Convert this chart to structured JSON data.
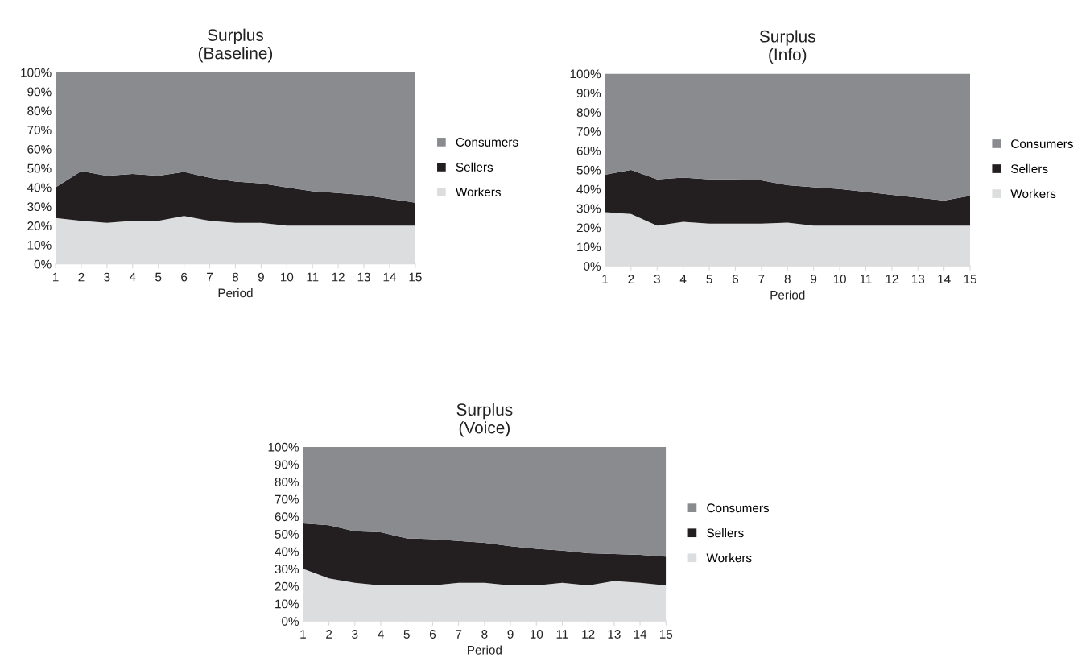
{
  "chart_data": [
    {
      "type": "area",
      "stacked": true,
      "title": "Surplus\n(Baseline)",
      "xlabel": "Period",
      "x": [
        1,
        2,
        3,
        4,
        5,
        6,
        7,
        8,
        9,
        10,
        11,
        12,
        13,
        14,
        15
      ],
      "xlim": [
        1,
        15
      ],
      "xticks": [
        1,
        2,
        3,
        4,
        5,
        6,
        7,
        8,
        9,
        10,
        11,
        12,
        13,
        14,
        15
      ],
      "ylim": [
        0,
        100
      ],
      "yticks": [
        {
          "value": 0,
          "label": "0%"
        },
        {
          "value": 10,
          "label": "10%"
        },
        {
          "value": 20,
          "label": "20%"
        },
        {
          "value": 30,
          "label": "30%"
        },
        {
          "value": 40,
          "label": "40%"
        },
        {
          "value": 50,
          "label": "50%"
        },
        {
          "value": 60,
          "label": "60%"
        },
        {
          "value": 70,
          "label": "70%"
        },
        {
          "value": 80,
          "label": "80%"
        },
        {
          "value": 90,
          "label": "90%"
        },
        {
          "value": 100,
          "label": "100%"
        }
      ],
      "grid": false,
      "legend": "right",
      "series": [
        {
          "name": "Workers",
          "color": "#dcdddf",
          "values": [
            24,
            22.5,
            21.5,
            22.5,
            22.5,
            25,
            22.5,
            21.5,
            21.5,
            20,
            20,
            20,
            20,
            20,
            20
          ]
        },
        {
          "name": "Sellers",
          "color": "#231f20",
          "values": [
            16,
            26,
            24.5,
            24.5,
            23.5,
            23,
            22.5,
            21.5,
            20.5,
            20,
            18,
            17,
            16,
            14,
            12
          ]
        },
        {
          "name": "Consumers",
          "color": "#8a8b8f",
          "values": [
            60,
            51.5,
            54,
            53,
            54,
            52,
            55,
            57,
            58,
            60,
            62,
            63,
            64,
            66,
            68
          ]
        }
      ]
    },
    {
      "type": "area",
      "stacked": true,
      "title": "Surplus\n(Info)",
      "xlabel": "Period",
      "x": [
        1,
        2,
        3,
        4,
        5,
        6,
        7,
        8,
        9,
        10,
        11,
        12,
        13,
        14,
        15
      ],
      "xlim": [
        1,
        15
      ],
      "xticks": [
        1,
        2,
        3,
        4,
        5,
        6,
        7,
        8,
        9,
        10,
        11,
        12,
        13,
        14,
        15
      ],
      "ylim": [
        0,
        100
      ],
      "yticks": [
        {
          "value": 0,
          "label": "0%"
        },
        {
          "value": 10,
          "label": "10%"
        },
        {
          "value": 20,
          "label": "20%"
        },
        {
          "value": 30,
          "label": "30%"
        },
        {
          "value": 40,
          "label": "40%"
        },
        {
          "value": 50,
          "label": "50%"
        },
        {
          "value": 60,
          "label": "60%"
        },
        {
          "value": 70,
          "label": "70%"
        },
        {
          "value": 80,
          "label": "80%"
        },
        {
          "value": 90,
          "label": "90%"
        },
        {
          "value": 100,
          "label": "100%"
        }
      ],
      "grid": false,
      "legend": "right",
      "series": [
        {
          "name": "Workers",
          "color": "#dcdddf",
          "values": [
            28,
            27,
            21,
            23,
            22,
            22,
            22,
            22.5,
            21,
            21,
            21,
            21,
            21,
            21,
            21
          ]
        },
        {
          "name": "Sellers",
          "color": "#231f20",
          "values": [
            19.5,
            23,
            24,
            23,
            23,
            23,
            22.5,
            19.5,
            20,
            19,
            17.5,
            16,
            14.5,
            13,
            15.5
          ]
        },
        {
          "name": "Consumers",
          "color": "#8a8b8f",
          "values": [
            52.5,
            50,
            55,
            54,
            55,
            55,
            55.5,
            58,
            59,
            60,
            61.5,
            63,
            64.5,
            66,
            63.5
          ]
        }
      ]
    },
    {
      "type": "area",
      "stacked": true,
      "title": "Surplus\n(Voice)",
      "xlabel": "Period",
      "x": [
        1,
        2,
        3,
        4,
        5,
        6,
        7,
        8,
        9,
        10,
        11,
        12,
        13,
        14,
        15
      ],
      "xlim": [
        1,
        15
      ],
      "xticks": [
        1,
        2,
        3,
        4,
        5,
        6,
        7,
        8,
        9,
        10,
        11,
        12,
        13,
        14,
        15
      ],
      "ylim": [
        0,
        100
      ],
      "yticks": [
        {
          "value": 0,
          "label": "0%"
        },
        {
          "value": 10,
          "label": "10%"
        },
        {
          "value": 20,
          "label": "20%"
        },
        {
          "value": 30,
          "label": "30%"
        },
        {
          "value": 40,
          "label": "40%"
        },
        {
          "value": 50,
          "label": "50%"
        },
        {
          "value": 60,
          "label": "60%"
        },
        {
          "value": 70,
          "label": "70%"
        },
        {
          "value": 80,
          "label": "80%"
        },
        {
          "value": 90,
          "label": "90%"
        },
        {
          "value": 100,
          "label": "100%"
        }
      ],
      "grid": false,
      "legend": "right",
      "series": [
        {
          "name": "Workers",
          "color": "#dcdddf",
          "values": [
            30,
            24.5,
            22,
            20.5,
            20.5,
            20.5,
            22,
            22,
            20.5,
            20.5,
            22,
            20.5,
            23,
            22,
            20.5
          ]
        },
        {
          "name": "Sellers",
          "color": "#231f20",
          "values": [
            26,
            30.5,
            29.5,
            30.5,
            27,
            26.5,
            24,
            23,
            22.5,
            21,
            18.5,
            18.5,
            15.5,
            16,
            16.5
          ]
        },
        {
          "name": "Consumers",
          "color": "#8a8b8f",
          "values": [
            44,
            45,
            48.5,
            49,
            52.5,
            53,
            54,
            55,
            57,
            58.5,
            59.5,
            61,
            61.5,
            62,
            63
          ]
        }
      ]
    }
  ]
}
